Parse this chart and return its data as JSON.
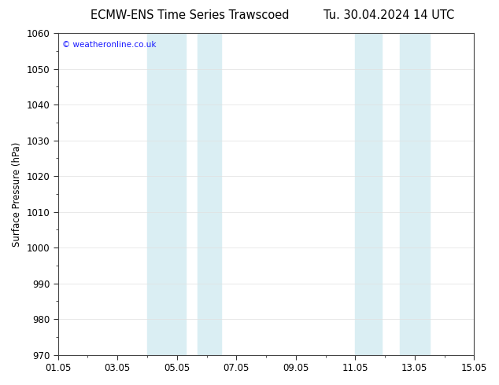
{
  "title_left": "ECMW-ENS Time Series Trawscoed",
  "title_right": "Tu. 30.04.2024 14 UTC",
  "ylabel": "Surface Pressure (hPa)",
  "ylim": [
    970,
    1060
  ],
  "yticks": [
    970,
    980,
    990,
    1000,
    1010,
    1020,
    1030,
    1040,
    1050,
    1060
  ],
  "xtick_labels": [
    "01.05",
    "03.05",
    "05.05",
    "07.05",
    "09.05",
    "11.05",
    "13.05",
    "15.05"
  ],
  "xtick_positions": [
    0,
    2,
    4,
    6,
    8,
    10,
    12,
    14
  ],
  "xlim": [
    0,
    14
  ],
  "shaded_regions": [
    {
      "xmin": 3.0,
      "xmax": 4.3,
      "color": "#daeef3"
    },
    {
      "xmin": 4.7,
      "xmax": 5.5,
      "color": "#daeef3"
    },
    {
      "xmin": 10.0,
      "xmax": 10.9,
      "color": "#daeef3"
    },
    {
      "xmin": 11.5,
      "xmax": 12.5,
      "color": "#daeef3"
    }
  ],
  "watermark_text": "© weatheronline.co.uk",
  "watermark_color": "#1a1aff",
  "background_color": "#ffffff",
  "plot_bg_color": "#ffffff",
  "grid_color": "#e0e0e0",
  "title_fontsize": 10.5,
  "tick_fontsize": 8.5,
  "ylabel_fontsize": 8.5
}
